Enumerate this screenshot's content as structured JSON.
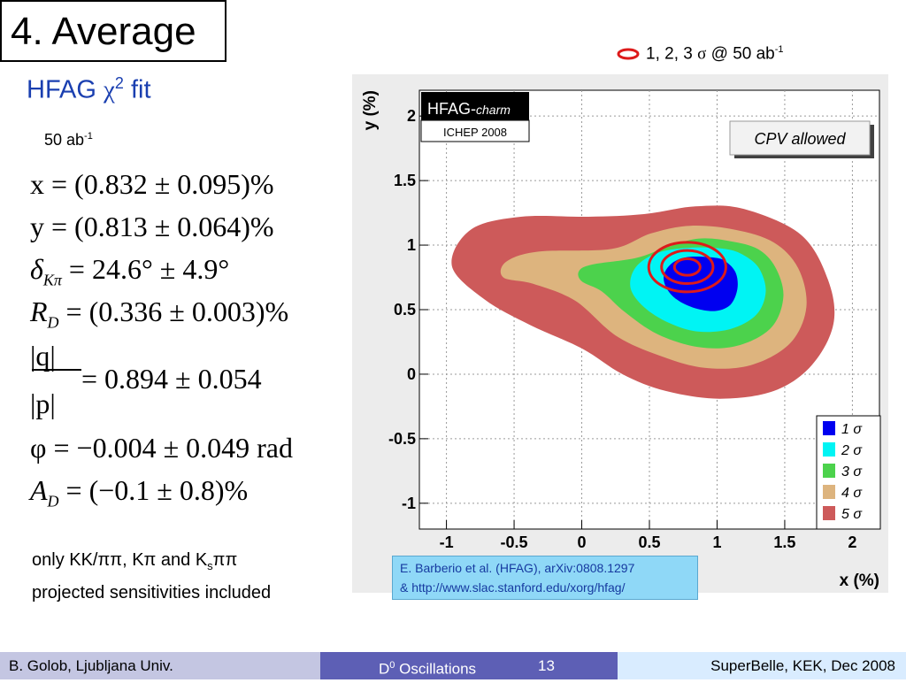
{
  "slide": {
    "title": "4. Average",
    "subtitle_prefix": "HFAG ",
    "subtitle_chi": "χ",
    "subtitle_sup": "2",
    "subtitle_suffix": " fit",
    "lumi_text": "50 ab",
    "lumi_sup": "-1",
    "top_legend_pre": "1, 2, 3 ",
    "top_legend_sigma": "σ",
    "top_legend_post": " @ 50 ab",
    "top_legend_sup": "-1"
  },
  "formulas": {
    "x": "x = (0.832 ± 0.095)%",
    "y": "y = (0.813 ± 0.064)%",
    "delta_sym": "δ",
    "delta_sub": "Kπ",
    "delta_val": " = 24.6° ± 4.9°",
    "rd_sym": "R",
    "rd_sub": "D",
    "rd_val": " = (0.336 ± 0.003)%",
    "q_num": "|q|",
    "q_den": "|p|",
    "q_val": "= 0.894 ± 0.054",
    "phi": "φ = −0.004 ± 0.049 rad",
    "ad_sym": "A",
    "ad_sub": "D",
    "ad_val": " = (−0.1 ± 0.8)%"
  },
  "note": {
    "line1_a": "only KK/ππ, Kπ and K",
    "line1_sub": "s",
    "line1_b": "ππ",
    "line2": "projected sensitivities included"
  },
  "reference": {
    "line1": "E. Barberio et al. (HFAG), arXiv:0808.1297",
    "line2": "& http://www.slac.stanford.edu/xorg/hfag/"
  },
  "footer": {
    "author": "B. Golob, Ljubljana Univ.",
    "topic_pre": "D",
    "topic_sup": "0",
    "topic_post": " Oscillations",
    "page": "13",
    "event": "SuperBelle, KEK, Dec 2008"
  },
  "chart_data": {
    "type": "contour",
    "xlabel": "x (%)",
    "ylabel": "y (%)",
    "xlim": [
      -1.2,
      2.2
    ],
    "ylim": [
      -1.2,
      2.2
    ],
    "x_ticks": [
      "-1",
      "-0.5",
      "0",
      "0.5",
      "1",
      "1.5",
      "2"
    ],
    "y_ticks": [
      "-1",
      "-0.5",
      "0",
      "0.5",
      "1",
      "1.5",
      "2"
    ],
    "grid": true,
    "hfag_label": "HFAG-",
    "hfag_label_italic": "charm",
    "conference": "ICHEP 2008",
    "annotation": "CPV allowed",
    "central_value": {
      "x": 0.832,
      "y": 0.813
    },
    "legend": [
      {
        "label": "1 σ",
        "color": "#0000f0"
      },
      {
        "label": "2 σ",
        "color": "#00f4f4"
      },
      {
        "label": "3 σ",
        "color": "#4cd24c"
      },
      {
        "label": "4 σ",
        "color": "#ddb47e"
      },
      {
        "label": "5 σ",
        "color": "#cd5a5a"
      }
    ],
    "projection_contours": {
      "label": "1, 2, 3 σ @ 50 ab-1",
      "center": {
        "x": 0.78,
        "y": 0.83
      },
      "sigma_x": [
        0.095,
        0.19,
        0.285
      ],
      "sigma_y": [
        0.064,
        0.128,
        0.192
      ],
      "color": "#dd1a1a"
    },
    "regions": [
      {
        "level": "5 σ",
        "color": "#cd5a5a",
        "points": [
          [
            1.2,
            1.28
          ],
          [
            0.84,
            1.3
          ],
          [
            0.46,
            1.24
          ],
          [
            0.05,
            1.22
          ],
          [
            -0.45,
            1.22
          ],
          [
            -0.82,
            1.12
          ],
          [
            -0.96,
            0.84
          ],
          [
            -0.72,
            0.58
          ],
          [
            -0.38,
            0.38
          ],
          [
            0.0,
            0.2
          ],
          [
            0.3,
            0.0
          ],
          [
            0.62,
            -0.13
          ],
          [
            1.02,
            -0.19
          ],
          [
            1.42,
            -0.13
          ],
          [
            1.7,
            0.07
          ],
          [
            1.86,
            0.39
          ],
          [
            1.82,
            0.73
          ],
          [
            1.62,
            1.08
          ]
        ]
      },
      {
        "level": "4 σ",
        "color": "#ddb47e",
        "points": [
          [
            1.13,
            1.12
          ],
          [
            0.8,
            1.15
          ],
          [
            0.51,
            1.09
          ],
          [
            0.22,
            0.97
          ],
          [
            -0.32,
            0.95
          ],
          [
            -0.56,
            0.87
          ],
          [
            -0.58,
            0.75
          ],
          [
            -0.36,
            0.7
          ],
          [
            -0.05,
            0.57
          ],
          [
            0.25,
            0.3
          ],
          [
            0.56,
            0.15
          ],
          [
            0.9,
            0.05
          ],
          [
            1.25,
            0.07
          ],
          [
            1.54,
            0.24
          ],
          [
            1.66,
            0.52
          ],
          [
            1.6,
            0.82
          ],
          [
            1.42,
            1.02
          ]
        ]
      },
      {
        "level": "3 σ",
        "color": "#4cd24c",
        "points": [
          [
            1.1,
            1.03
          ],
          [
            0.86,
            1.05
          ],
          [
            0.62,
            0.98
          ],
          [
            0.4,
            0.9
          ],
          [
            0.08,
            0.85
          ],
          [
            -0.02,
            0.8
          ],
          [
            0.0,
            0.72
          ],
          [
            0.15,
            0.64
          ],
          [
            0.32,
            0.48
          ],
          [
            0.56,
            0.31
          ],
          [
            0.86,
            0.21
          ],
          [
            1.15,
            0.22
          ],
          [
            1.4,
            0.36
          ],
          [
            1.49,
            0.6
          ],
          [
            1.43,
            0.83
          ],
          [
            1.3,
            0.97
          ]
        ]
      },
      {
        "level": "2 σ",
        "color": "#00f4f4",
        "points": [
          [
            1.06,
            0.97
          ],
          [
            0.8,
            0.98
          ],
          [
            0.56,
            0.94
          ],
          [
            0.4,
            0.83
          ],
          [
            0.36,
            0.67
          ],
          [
            0.46,
            0.52
          ],
          [
            0.64,
            0.4
          ],
          [
            0.86,
            0.33
          ],
          [
            1.1,
            0.35
          ],
          [
            1.29,
            0.46
          ],
          [
            1.36,
            0.64
          ],
          [
            1.31,
            0.82
          ],
          [
            1.2,
            0.92
          ]
        ]
      },
      {
        "level": "1 σ",
        "color": "#0000f0",
        "points": [
          [
            1.0,
            0.9
          ],
          [
            0.8,
            0.91
          ],
          [
            0.68,
            0.87
          ],
          [
            0.61,
            0.78
          ],
          [
            0.62,
            0.68
          ],
          [
            0.7,
            0.58
          ],
          [
            0.84,
            0.51
          ],
          [
            0.99,
            0.49
          ],
          [
            1.1,
            0.54
          ],
          [
            1.15,
            0.66
          ],
          [
            1.14,
            0.78
          ],
          [
            1.08,
            0.86
          ]
        ]
      }
    ]
  }
}
